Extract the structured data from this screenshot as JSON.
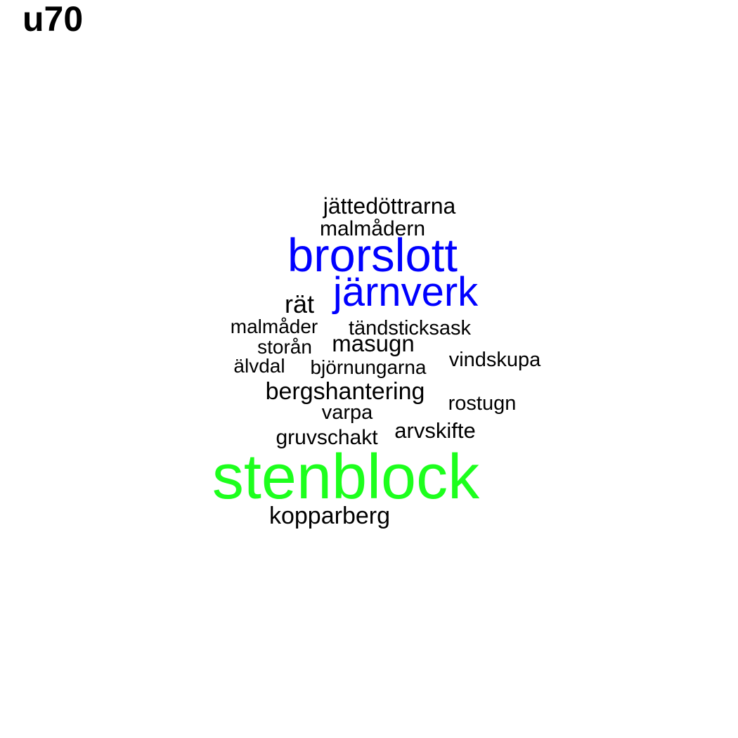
{
  "title": "u70",
  "colors": {
    "background": "#ffffff",
    "default_word": "#000000",
    "blue_word": "#0000ff",
    "green_word": "#1dff1d"
  },
  "words": [
    {
      "text": "jättedöttrarna",
      "color": "#000000"
    },
    {
      "text": "malmådern",
      "color": "#000000"
    },
    {
      "text": "brorslott",
      "color": "#0000ff"
    },
    {
      "text": "järnverk",
      "color": "#0000ff"
    },
    {
      "text": "rät",
      "color": "#000000"
    },
    {
      "text": "malmåder",
      "color": "#000000"
    },
    {
      "text": "tändsticksask",
      "color": "#000000"
    },
    {
      "text": "storån",
      "color": "#000000"
    },
    {
      "text": "masugn",
      "color": "#000000"
    },
    {
      "text": "älvdal",
      "color": "#000000"
    },
    {
      "text": "björnungarna",
      "color": "#000000"
    },
    {
      "text": "vindskupa",
      "color": "#000000"
    },
    {
      "text": "bergshantering",
      "color": "#000000"
    },
    {
      "text": "rostugn",
      "color": "#000000"
    },
    {
      "text": "varpa",
      "color": "#000000"
    },
    {
      "text": "arvskifte",
      "color": "#000000"
    },
    {
      "text": "gruvschakt",
      "color": "#000000"
    },
    {
      "text": "stenblock",
      "color": "#1dff1d"
    },
    {
      "text": "kopparberg",
      "color": "#000000"
    }
  ]
}
